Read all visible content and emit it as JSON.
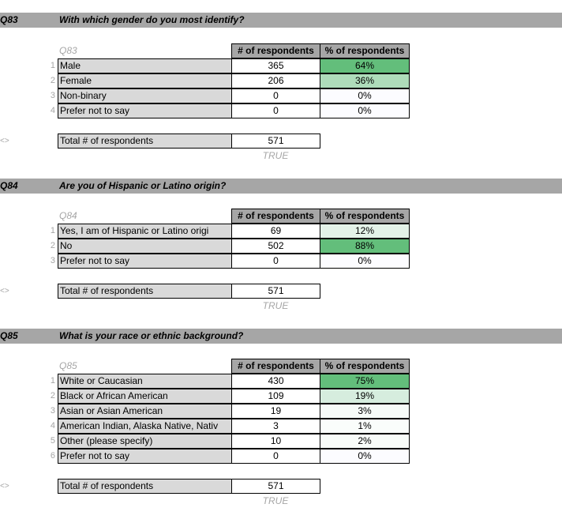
{
  "col_respondents": "# of respondents",
  "col_percent": "% of respondents",
  "total_label": "Total # of respondents",
  "arrow": "<>",
  "questions": [
    {
      "id": "Q83",
      "text": "With which gender do you most identify?",
      "rows": [
        {
          "n": "1",
          "label": "Male",
          "count": "365",
          "pct": "64%",
          "fill": "#63be7b"
        },
        {
          "n": "2",
          "label": "Female",
          "count": "206",
          "pct": "36%",
          "fill": "#aedcba"
        },
        {
          "n": "3",
          "label": "Non-binary",
          "count": "0",
          "pct": "0%",
          "fill": "#fcfcff"
        },
        {
          "n": "4",
          "label": "Prefer not to say",
          "count": "0",
          "pct": "0%",
          "fill": "#fcfcff"
        }
      ],
      "total": "571",
      "check": "TRUE"
    },
    {
      "id": "Q84",
      "text": "Are you of Hispanic or Latino origin?",
      "rows": [
        {
          "n": "1",
          "label": "Yes, I am of Hispanic or Latino origi",
          "count": "69",
          "pct": "12%",
          "fill": "#e3f2e8"
        },
        {
          "n": "2",
          "label": "No",
          "count": "502",
          "pct": "88%",
          "fill": "#63be7b"
        },
        {
          "n": "3",
          "label": "Prefer not to say",
          "count": "0",
          "pct": "0%",
          "fill": "#fcfcff"
        }
      ],
      "total": "571",
      "check": "TRUE"
    },
    {
      "id": "Q85",
      "text": "What is your race or ethnic background?",
      "rows": [
        {
          "n": "1",
          "label": "White or Caucasian",
          "count": "430",
          "pct": "75%",
          "fill": "#63be7b"
        },
        {
          "n": "2",
          "label": "Black or African American",
          "count": "109",
          "pct": "19%",
          "fill": "#d6edde"
        },
        {
          "n": "3",
          "label": "Asian or Asian American",
          "count": "19",
          "pct": "3%",
          "fill": "#f6fbf8"
        },
        {
          "n": "4",
          "label": "American Indian, Alaska Native, Nativ",
          "count": "3",
          "pct": "1%",
          "fill": "#fafdfb"
        },
        {
          "n": "5",
          "label": "Other (please specify)",
          "count": "10",
          "pct": "2%",
          "fill": "#f8fcf9"
        },
        {
          "n": "6",
          "label": "Prefer not to say",
          "count": "0",
          "pct": "0%",
          "fill": "#fcfcff"
        }
      ],
      "total": "571",
      "check": "TRUE"
    }
  ]
}
